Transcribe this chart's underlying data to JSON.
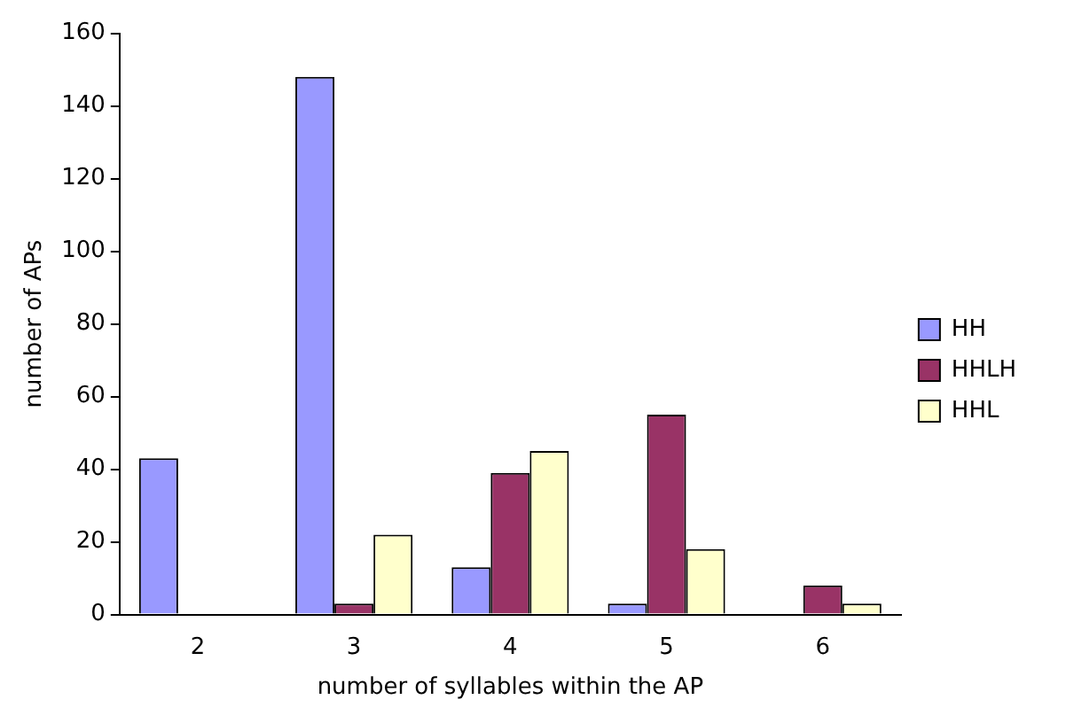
{
  "chart_data": {
    "type": "bar",
    "xlabel": "number of syllables within the AP",
    "ylabel": "number of APs",
    "categories": [
      "2",
      "3",
      "4",
      "5",
      "6"
    ],
    "series": [
      {
        "name": "HH",
        "color": "#9999ff",
        "values": [
          43,
          148,
          13,
          3,
          0
        ]
      },
      {
        "name": "HHLH",
        "color": "#993366",
        "values": [
          0,
          3,
          39,
          55,
          8
        ]
      },
      {
        "name": "HHL",
        "color": "#ffffcc",
        "values": [
          0,
          22,
          45,
          18,
          3
        ]
      }
    ],
    "ylim": [
      0,
      160
    ],
    "yticks": [
      0,
      20,
      40,
      60,
      80,
      100,
      120,
      140,
      160
    ],
    "grid": false,
    "legend": "right"
  }
}
